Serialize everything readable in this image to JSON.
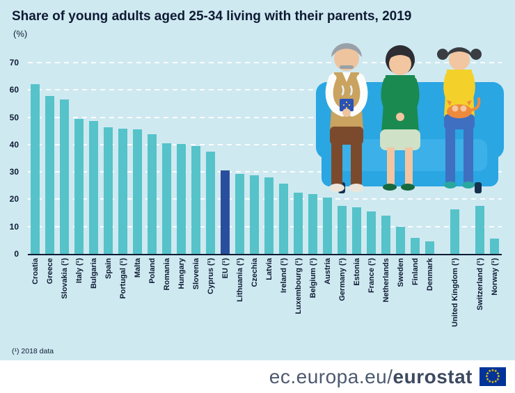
{
  "title": "Share of young adults aged 25-34 living with their parents, 2019",
  "subtitle": "(%)",
  "footnote": "(¹) 2018 data",
  "footer": {
    "url_regular": "ec.europa.eu/",
    "url_bold": "eurostat",
    "flag_icon": "eu-flag"
  },
  "colors": {
    "background": "#cfe9f1",
    "bar": "#55c3c9",
    "highlight": "#2a4e9e",
    "grid": "#ffffff",
    "text": "#0e1b33",
    "couch": "#2aa6e2",
    "flag_blue": "#003399",
    "flag_stars": "#ffcc00"
  },
  "chart_data": {
    "type": "bar",
    "title": "Share of young adults aged 25-34 living with their parents, 2019",
    "ylabel": "(%)",
    "xlabel": "",
    "ylim": [
      0,
      70
    ],
    "yticks": [
      0,
      10,
      20,
      30,
      40,
      50,
      60,
      70
    ],
    "grid": "horizontal-dashed-white",
    "legend": "none",
    "bar_color": "#55c3c9",
    "highlight_color": "#2a4e9e",
    "highlight_index": 13,
    "gaps_after_indices": [
      27,
      28
    ],
    "categories": [
      "Croatia",
      "Greece",
      "Slovakia (¹)",
      "Italy (¹)",
      "Bulgaria",
      "Spain",
      "Portugal (¹)",
      "Malta",
      "Poland",
      "Romania",
      "Hungary",
      "Slovenia",
      "Cyprus (¹)",
      "EU (¹)",
      "Lithuania (¹)",
      "Czechia",
      "Latvia",
      "Ireland (¹)",
      "Luxembourg (¹)",
      "Belgium (¹)",
      "Austria",
      "Germany (¹)",
      "Estonia",
      "France (¹)",
      "Netherlands",
      "Sweden",
      "Finland",
      "Denmark",
      "United Kingdom (¹)",
      "Switzerland (¹)",
      "Norway (¹)"
    ],
    "values": [
      62.0,
      57.8,
      56.4,
      49.4,
      48.5,
      46.4,
      45.7,
      45.5,
      43.8,
      40.6,
      40.1,
      39.5,
      37.4,
      30.5,
      29.4,
      28.7,
      28.0,
      25.6,
      22.3,
      21.8,
      20.6,
      17.5,
      17.0,
      15.6,
      13.9,
      10.0,
      5.8,
      4.5,
      16.4,
      17.5,
      5.5
    ]
  }
}
